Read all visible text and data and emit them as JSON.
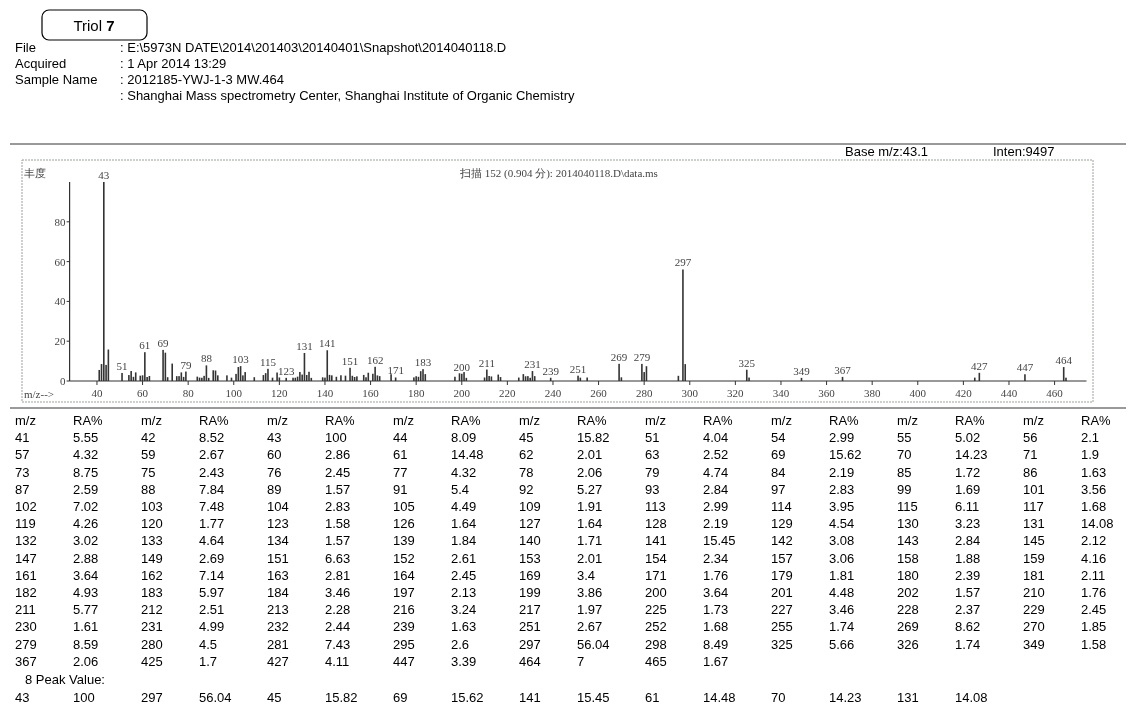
{
  "chart_data": {
    "type": "bar",
    "title": "Triol 7",
    "subtitle": "扫描 152 (0.904 分): 2014040118.D\\data.ms",
    "xlabel": "m/z-->",
    "ylabel": "丰度",
    "x": [
      41,
      42,
      43,
      44,
      45,
      51,
      54,
      55,
      56,
      57,
      59,
      60,
      61,
      62,
      63,
      69,
      70,
      71,
      73,
      75,
      76,
      77,
      78,
      79,
      84,
      85,
      86,
      87,
      88,
      89,
      91,
      92,
      93,
      97,
      99,
      101,
      102,
      103,
      104,
      105,
      109,
      113,
      114,
      115,
      117,
      119,
      120,
      123,
      126,
      127,
      128,
      129,
      130,
      131,
      132,
      133,
      134,
      139,
      140,
      141,
      142,
      143,
      145,
      147,
      149,
      151,
      152,
      153,
      154,
      157,
      158,
      159,
      161,
      162,
      163,
      164,
      169,
      171,
      179,
      180,
      181,
      182,
      183,
      184,
      197,
      199,
      200,
      201,
      202,
      210,
      211,
      212,
      213,
      216,
      217,
      225,
      227,
      228,
      229,
      230,
      231,
      232,
      239,
      251,
      252,
      255,
      269,
      270,
      279,
      280,
      281,
      295,
      297,
      298,
      325,
      326,
      349,
      367,
      425,
      427,
      447,
      464,
      465
    ],
    "values": [
      5.55,
      8.52,
      100,
      8.09,
      15.82,
      4.04,
      2.99,
      5.02,
      2.1,
      4.32,
      2.67,
      2.86,
      14.48,
      2.01,
      2.52,
      15.62,
      14.23,
      1.9,
      8.75,
      2.43,
      2.45,
      4.32,
      2.06,
      4.74,
      2.19,
      1.72,
      1.63,
      2.59,
      7.84,
      1.57,
      5.4,
      5.27,
      2.84,
      2.83,
      1.69,
      3.56,
      7.02,
      7.48,
      2.83,
      4.49,
      1.91,
      2.99,
      3.95,
      6.11,
      1.68,
      4.26,
      1.77,
      1.58,
      1.64,
      1.64,
      2.19,
      4.54,
      3.23,
      14.08,
      3.02,
      4.64,
      1.57,
      1.84,
      1.71,
      15.45,
      3.08,
      2.84,
      2.12,
      2.88,
      2.69,
      6.63,
      2.61,
      2.01,
      2.34,
      3.06,
      1.88,
      4.16,
      3.64,
      7.14,
      2.81,
      2.45,
      3.4,
      1.76,
      1.81,
      2.39,
      2.11,
      4.93,
      5.97,
      3.46,
      2.13,
      3.86,
      3.64,
      4.48,
      1.57,
      1.76,
      5.77,
      2.51,
      2.28,
      3.24,
      1.97,
      1.73,
      3.46,
      2.37,
      2.45,
      1.61,
      4.99,
      2.44,
      1.63,
      2.67,
      1.68,
      1.74,
      8.62,
      1.85,
      8.59,
      4.5,
      7.43,
      2.6,
      56.04,
      8.49,
      5.66,
      1.74,
      1.58,
      2.06,
      1.7,
      4.11,
      3.39,
      7,
      1.67
    ],
    "color": "#333333",
    "xlim": [
      28,
      474
    ],
    "xticks": [
      40,
      60,
      80,
      100,
      120,
      140,
      160,
      180,
      200,
      220,
      240,
      260,
      280,
      300,
      320,
      340,
      360,
      380,
      400,
      420,
      440,
      460
    ],
    "ylim": [
      0,
      100
    ],
    "yticks": [
      0,
      20,
      40,
      60,
      80
    ],
    "grid": false,
    "annotations": [
      "File",
      ": E:\\5973N DATE\\2014\\201403\\20140401\\Snapshot\\2014040118.D",
      "Acquired",
      ": 1 Apr 2014  13:29",
      "Sample Name",
      ": 2012185-YWJ-1-3 MW.464",
      ": Shanghai Mass spectrometry Center, Shanghai Institute of Organic Chemistry",
      "Base m/z:43.1",
      "Inten:9497",
      "m/z RA% m/z RA% m/z RA% m/z RA% m/z RA% m/z RA% m/z RA% m/z RA% m/z RA%",
      "41 5.55 42 8.52 43 100 44 8.09 45 15.82 51 4.04 54 2.99 55 5.02 56 2.1",
      "57 4.32 59 2.67 60 2.86 61 14.48 62 2.01 63 2.52 69 15.62 70 14.23 71 1.9",
      "73 8.75 75 2.43 76 2.45 77 4.32 78 2.06 79 4.74 84 2.19 85 1.72 86 1.63",
      "87 2.59 88 7.84 89 1.57 91 5.4 92 5.27 93 2.84 97 2.83 99 1.69 101 3.56",
      "102 7.02 103 7.48 104 2.83 105 4.49 109 1.91 113 2.99 114 3.95 115 6.11 117 1.68",
      "119 4.26 120 1.77 123 1.58 126 1.64 127 1.64 128 2.19 129 4.54 130 3.23 131 14.08",
      "132 3.02 133 4.64 134 1.57 139 1.84 140 1.71 141 15.45 142 3.08 143 2.84 145 2.12",
      "147 2.88 149 2.69 151 6.63 152 2.61 153 2.01 154 2.34 157 3.06 158 1.88 159 4.16",
      "161 3.64 162 7.14 163 2.81 164 2.45 169 3.4 171 1.76 179 1.81 180 2.39 181 2.11",
      "182 4.93 183 5.97 184 3.46 197 2.13 199 3.86 200 3.64 201 4.48 202 1.57 210 1.76",
      "211 5.77 212 2.51 213 2.28 216 3.24 217 1.97 225 1.73 227 3.46 228 2.37 229 2.45",
      "230 1.61 231 4.99 232 2.44 239 1.63 251 2.67 252 1.68 255 1.74 269 8.62 270 1.85",
      "279 8.59 280 4.5 281 7.43 295 2.6 297 56.04 298 8.49 325 5.66 326 1.74 349 1.58",
      "367 2.06 425 1.7 427 4.11 447 3.39 464 7 465 1.67",
      "8 Peak Value:",
      "43 100 297 56.04 45 15.82 69 15.62 141 15.45 61 14.48 70 14.23 131 14.08",
      {
        "text": "43",
        "x": 43,
        "y": 100
      },
      {
        "text": "51",
        "x": 51,
        "y": 4.04
      },
      {
        "text": "61",
        "x": 61,
        "y": 14.48
      },
      {
        "text": "69",
        "x": 69,
        "y": 15.62
      },
      {
        "text": "79",
        "x": 79,
        "y": 4.74
      },
      {
        "text": "88",
        "x": 88,
        "y": 7.84
      },
      {
        "text": "103",
        "x": 103,
        "y": 7.48
      },
      {
        "text": "115",
        "x": 115,
        "y": 6.11
      },
      {
        "text": "123",
        "x": 123,
        "y": 1.58
      },
      {
        "text": "131",
        "x": 131,
        "y": 14.08
      },
      {
        "text": "141",
        "x": 141,
        "y": 15.45
      },
      {
        "text": "151",
        "x": 151,
        "y": 6.63
      },
      {
        "text": "162",
        "x": 162,
        "y": 7.14
      },
      {
        "text": "171",
        "x": 171,
        "y": 1.76
      },
      {
        "text": "183",
        "x": 183,
        "y": 5.97
      },
      {
        "text": "200",
        "x": 200,
        "y": 3.64
      },
      {
        "text": "211",
        "x": 211,
        "y": 5.77
      },
      {
        "text": "231",
        "x": 231,
        "y": 4.99
      },
      {
        "text": "239",
        "x": 239,
        "y": 1.63
      },
      {
        "text": "251",
        "x": 251,
        "y": 2.67
      },
      {
        "text": "269",
        "x": 269,
        "y": 8.62
      },
      {
        "text": "279",
        "x": 279,
        "y": 8.59
      },
      {
        "text": "297",
        "x": 297,
        "y": 56.04
      },
      {
        "text": "325",
        "x": 325,
        "y": 5.66
      },
      {
        "text": "349",
        "x": 349,
        "y": 1.58
      },
      {
        "text": "367",
        "x": 367,
        "y": 2.06
      },
      {
        "text": "427",
        "x": 427,
        "y": 4.11
      },
      {
        "text": "447",
        "x": 447,
        "y": 3.39
      },
      {
        "text": "464",
        "x": 464,
        "y": 7
      }
    ]
  }
}
